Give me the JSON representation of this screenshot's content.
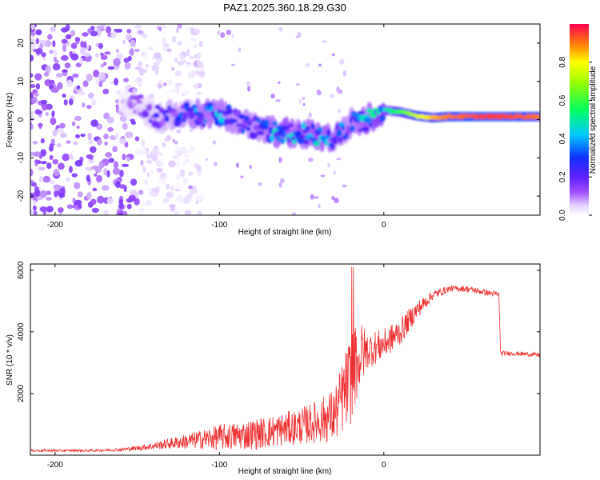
{
  "title": "PAZ1.2025.360.18.29.G30",
  "chart_data": [
    {
      "type": "heatmap",
      "name": "spectrogram",
      "xlabel": "Height of straight line (km)",
      "ylabel": "Frequency (Hz)",
      "xlim": [
        -215,
        95
      ],
      "ylim": [
        -25,
        25
      ],
      "xticks": [
        -200,
        -100,
        0
      ],
      "xtick_labels": [
        "-200",
        "-100",
        "0"
      ],
      "yticks": [
        -20,
        -10,
        0,
        10,
        20
      ],
      "ytick_labels": [
        "-20",
        "-10",
        "0",
        "10",
        "20"
      ],
      "colorbar": {
        "label": "Normalized spectral amplitude",
        "range": [
          0,
          1
        ],
        "ticks": [
          0,
          0.2,
          0.4,
          0.6,
          0.8
        ],
        "tick_labels": [
          "0.0",
          "0.2",
          "0.4",
          "0.6",
          "0.8"
        ]
      },
      "ridge": {
        "x": [
          -160,
          -150,
          -140,
          -130,
          -120,
          -110,
          -100,
          -90,
          -80,
          -70,
          -60,
          -50,
          -40,
          -30,
          -20,
          -10,
          0,
          10,
          20,
          30,
          40,
          50,
          60,
          70,
          80,
          95
        ],
        "freq": [
          4,
          4.5,
          1,
          1,
          1.5,
          1,
          1.5,
          0,
          -2,
          -3,
          -3.5,
          -4,
          -4,
          -5,
          -1,
          0,
          2.5,
          2,
          1,
          0.5,
          0.8,
          0.8,
          0.8,
          0.8,
          0.8,
          0.8
        ],
        "amplitude": [
          0.05,
          0.1,
          0.15,
          0.2,
          0.25,
          0.3,
          0.3,
          0.25,
          0.25,
          0.3,
          0.35,
          0.3,
          0.35,
          0.3,
          0.25,
          0.35,
          0.45,
          0.6,
          0.75,
          0.85,
          0.9,
          0.92,
          0.95,
          0.95,
          0.93,
          0.9
        ]
      },
      "noise_region_x": [
        -215,
        -150
      ],
      "noise_amplitude": 0.1
    },
    {
      "type": "line",
      "name": "snr",
      "xlabel": "Height of straight line (km)",
      "ylabel": "SNR (10 * v/v)",
      "xlim": [
        -215,
        95
      ],
      "ylim": [
        0,
        6200
      ],
      "xticks": [
        -200,
        -100,
        0
      ],
      "xtick_labels": [
        "-200",
        "-100",
        "0"
      ],
      "yticks": [
        2000,
        4000,
        6000
      ],
      "ytick_labels": [
        "2000",
        "4000",
        "6000"
      ],
      "color": "#f03030",
      "series": [
        {
          "name": "SNR",
          "x": [
            -215,
            -180,
            -160,
            -150,
            -140,
            -130,
            -120,
            -110,
            -100,
            -90,
            -80,
            -70,
            -60,
            -50,
            -40,
            -30,
            -20,
            -15,
            -10,
            0,
            10,
            20,
            30,
            40,
            50,
            60,
            70,
            71,
            80,
            95
          ],
          "y": [
            150,
            150,
            180,
            230,
            300,
            380,
            450,
            520,
            580,
            620,
            680,
            750,
            850,
            950,
            1100,
            1300,
            2500,
            3200,
            3400,
            3600,
            4000,
            4700,
            5200,
            5400,
            5400,
            5300,
            5200,
            3300,
            3300,
            3250
          ],
          "noise_amp": [
            40,
            40,
            50,
            80,
            120,
            180,
            250,
            320,
            420,
            450,
            500,
            520,
            550,
            600,
            700,
            900,
            1500,
            1200,
            600,
            500,
            450,
            300,
            150,
            100,
            100,
            100,
            100,
            80,
            70,
            70
          ]
        }
      ]
    }
  ]
}
